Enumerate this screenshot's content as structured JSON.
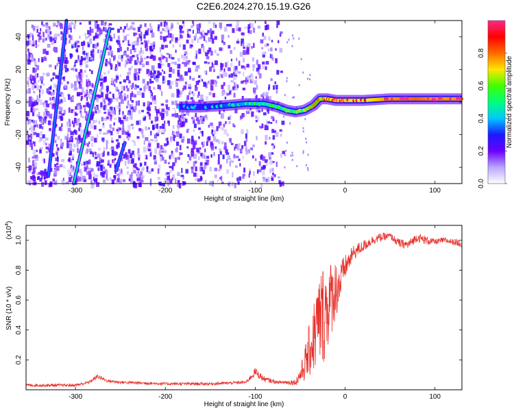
{
  "page": {
    "title": "C2E6.2024.270.15.19.G26"
  },
  "chart_data": [
    {
      "id": "spectrogram",
      "type": "heatmap",
      "title": "C2E6.2024.270.15.19.G26",
      "xlabel": "Height of straight line (km)",
      "ylabel": "Frequency (Hz)",
      "xlim": [
        -355,
        130
      ],
      "ylim": [
        -50,
        50
      ],
      "x_ticks": [
        -300,
        -200,
        -100,
        0,
        100
      ],
      "y_ticks": [
        -40,
        -20,
        0,
        20,
        40
      ],
      "colorbar": {
        "label": "Normalized spectral amplitude",
        "range": [
          0,
          1
        ],
        "ticks": [
          "0.0",
          "0.2",
          "0.4",
          "0.6",
          "0.8"
        ],
        "tick_values": [
          0.0,
          0.2,
          0.4,
          0.6,
          0.8
        ],
        "colors": [
          "#ffffff",
          "#b9a6ff",
          "#6a00ff",
          "#1a1aff",
          "#00c8ff",
          "#00ff7a",
          "#40ff00",
          "#ffe600",
          "#ff6a00",
          "#ff0000",
          "#ff2a8a"
        ]
      },
      "noise_region": {
        "x_from": -355,
        "x_to": -70
      },
      "streaks": [
        {
          "x": [
            -330,
            -310
          ],
          "y": [
            -45,
            50
          ],
          "amp": 0.35
        },
        {
          "x": [
            -302,
            -262
          ],
          "y": [
            -50,
            45
          ],
          "amp": 0.45
        },
        {
          "x": [
            -255,
            -245
          ],
          "y": [
            -42,
            -25
          ],
          "amp": 0.35
        }
      ],
      "signal_line": {
        "x": [
          -185,
          -160,
          -130,
          -110,
          -90,
          -75,
          -65,
          -55,
          -45,
          -35,
          -28,
          -20,
          -10,
          0,
          20,
          50,
          80,
          100,
          130
        ],
        "y": [
          -3,
          -3,
          -2,
          -1,
          -1,
          -3,
          -5,
          -6,
          -5,
          -2,
          2,
          2,
          1,
          1,
          1,
          2,
          2,
          2,
          2
        ],
        "amp": [
          0.3,
          0.3,
          0.4,
          0.45,
          0.5,
          0.5,
          0.55,
          0.55,
          0.6,
          0.7,
          0.75,
          0.8,
          0.85,
          0.85,
          0.8,
          0.9,
          0.95,
          0.9,
          0.9
        ]
      }
    },
    {
      "id": "snr",
      "type": "line",
      "xlabel": "Height of straight line (km)",
      "ylabel": "SNR (10 * v/v)",
      "y_multiplier": "(x10",
      "y_multiplier_exp": "4",
      "y_multiplier_close": ")",
      "xlim": [
        -355,
        130
      ],
      "ylim": [
        0,
        1.1
      ],
      "x_ticks": [
        -300,
        -200,
        -100,
        0,
        100
      ],
      "y_ticks": [
        0.2,
        0.4,
        0.6,
        0.8,
        1.0
      ],
      "y_tick_labels": [
        "0.2",
        "0.4",
        "0.6",
        "0.8",
        "1.0"
      ],
      "color": "#e8302a",
      "envelope": {
        "x": [
          -355,
          -300,
          -285,
          -275,
          -265,
          -250,
          -200,
          -150,
          -110,
          -100,
          -90,
          -75,
          -55,
          -48,
          -42,
          -35,
          -30,
          -25,
          -20,
          -15,
          -10,
          -5,
          0,
          10,
          20,
          30,
          40,
          50,
          60,
          70,
          80,
          90,
          100,
          110,
          120,
          130
        ],
        "mean": [
          0.03,
          0.03,
          0.05,
          0.09,
          0.06,
          0.05,
          0.04,
          0.04,
          0.05,
          0.12,
          0.07,
          0.05,
          0.05,
          0.12,
          0.22,
          0.35,
          0.45,
          0.5,
          0.55,
          0.62,
          0.68,
          0.72,
          0.82,
          0.92,
          0.96,
          1.0,
          1.02,
          1.03,
          0.98,
          0.97,
          1.02,
          1.0,
          0.99,
          1.0,
          0.99,
          0.98
        ],
        "jitter": [
          0.01,
          0.01,
          0.01,
          0.015,
          0.01,
          0.01,
          0.01,
          0.01,
          0.01,
          0.03,
          0.02,
          0.01,
          0.02,
          0.08,
          0.15,
          0.25,
          0.3,
          0.35,
          0.3,
          0.25,
          0.2,
          0.15,
          0.08,
          0.05,
          0.04,
          0.03,
          0.03,
          0.02,
          0.03,
          0.03,
          0.03,
          0.03,
          0.02,
          0.02,
          0.02,
          0.03
        ]
      }
    }
  ]
}
